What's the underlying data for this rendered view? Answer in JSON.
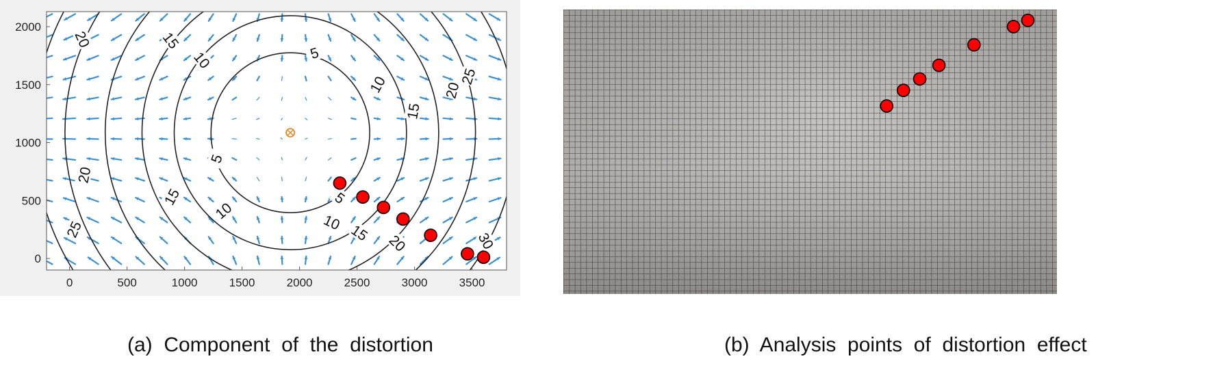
{
  "captions": {
    "a": "(a)  Component  of  the  distortion",
    "b": "(b)  Analysis  points  of  distortion  effect"
  },
  "colors": {
    "quiver": "#3a8fd0",
    "contour": "#222222",
    "marker_fill": "#ff0000",
    "marker_edge": "#000000",
    "center": "#e38b2a",
    "photo_bg": "#bdbab5",
    "grid_line": "#2a2a2a"
  },
  "chart_data": [
    {
      "type": "contour+quiver",
      "title": "",
      "xlabel": "",
      "ylabel": "",
      "xlim": [
        -200,
        3800
      ],
      "ylim": [
        2130,
        -100
      ],
      "y_reversed": true,
      "x_ticks": [
        0,
        500,
        1000,
        1500,
        2000,
        2500,
        3000,
        3500
      ],
      "y_ticks": [
        0,
        500,
        1000,
        1500,
        2000
      ],
      "grid": false,
      "distortion_center": [
        1920,
        1085
      ],
      "contour_levels": [
        5,
        10,
        15,
        20,
        25,
        30
      ],
      "contour_labels": [
        {
          "text": "5",
          "x": 1280,
          "y": 860
        },
        {
          "text": "5",
          "x": 2350,
          "y": 520
        },
        {
          "text": "5",
          "x": 2130,
          "y": 1770
        },
        {
          "text": "10",
          "x": 1340,
          "y": 410
        },
        {
          "text": "10",
          "x": 2280,
          "y": 310
        },
        {
          "text": "10",
          "x": 2680,
          "y": 1500
        },
        {
          "text": "10",
          "x": 1150,
          "y": 1710
        },
        {
          "text": "15",
          "x": 890,
          "y": 530
        },
        {
          "text": "15",
          "x": 2520,
          "y": 220
        },
        {
          "text": "15",
          "x": 2990,
          "y": 1270
        },
        {
          "text": "15",
          "x": 880,
          "y": 1880
        },
        {
          "text": "20",
          "x": 130,
          "y": 720
        },
        {
          "text": "20",
          "x": 2850,
          "y": 130
        },
        {
          "text": "20",
          "x": 3330,
          "y": 1450
        },
        {
          "text": "20",
          "x": 110,
          "y": 1890
        },
        {
          "text": "25",
          "x": 40,
          "y": 250
        },
        {
          "text": "25",
          "x": 3470,
          "y": 1570
        },
        {
          "text": "30",
          "x": 3620,
          "y": 150
        }
      ],
      "analysis_points": [
        {
          "x": 2350,
          "y": 650
        },
        {
          "x": 2550,
          "y": 530
        },
        {
          "x": 2730,
          "y": 440
        },
        {
          "x": 2900,
          "y": 340
        },
        {
          "x": 3140,
          "y": 200
        },
        {
          "x": 3460,
          "y": 40
        },
        {
          "x": 3600,
          "y": 10
        }
      ]
    },
    {
      "type": "photo",
      "title": "",
      "analysis_points": [
        {
          "x": 0.655,
          "y": 0.339
        },
        {
          "x": 0.689,
          "y": 0.284
        },
        {
          "x": 0.722,
          "y": 0.244
        },
        {
          "x": 0.761,
          "y": 0.196
        },
        {
          "x": 0.832,
          "y": 0.124
        },
        {
          "x": 0.912,
          "y": 0.06
        },
        {
          "x": 0.941,
          "y": 0.038
        }
      ]
    }
  ]
}
